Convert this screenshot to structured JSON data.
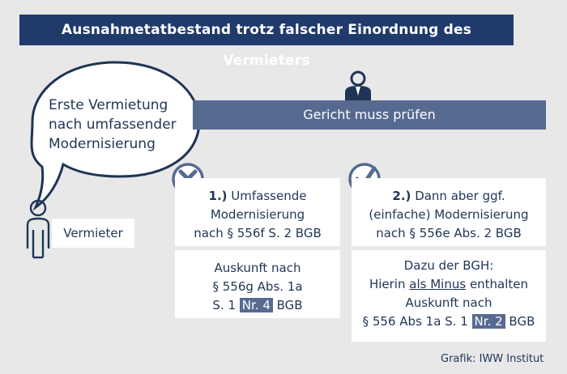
{
  "title": "Ausnahmetatbestand trotz falscher Einordnung des Vermieters",
  "bubble": {
    "text_lines": [
      "Erste Vermietung",
      "nach umfassender",
      "Modernisierung"
    ]
  },
  "court_bar": {
    "label": "Gericht muss prüfen"
  },
  "landlord": {
    "label": "Vermieter",
    "icon": "person-icon"
  },
  "judge": {
    "icon": "judge-icon"
  },
  "option1": {
    "status_icon": "x-mark-icon",
    "heading_num": "1.)",
    "heading_lines": [
      "Umfassende",
      "Modernisierung",
      "nach § 556f S. 2 BGB"
    ],
    "result_lines": [
      "Auskunft nach",
      "§ 556g Abs. 1a"
    ],
    "result_pre": "S. 1",
    "result_highlight": "Nr. 4",
    "result_post": "BGB"
  },
  "option2": {
    "status_icon": "check-mark-icon",
    "heading_num": "2.)",
    "heading_lines": [
      "Dann aber ggf.",
      "(einfache) Modernisierung",
      "nach § 556e Abs. 2 BGB"
    ],
    "result_line1": "Dazu der BGH:",
    "result_line2_pre": "Hierin",
    "result_line2_underlined": "als Minus",
    "result_line2_post": "enthalten",
    "result_line3": "Auskunft nach",
    "result_line4_pre": "§ 556 Abs 1a S. 1",
    "result_line4_highlight": "Nr. 2",
    "result_line4_post": "BGB"
  },
  "credit": "Grafik: IWW Institut",
  "colors": {
    "navy": "#1f3a6b",
    "slate": "#566a90",
    "background": "#e8e8e8",
    "white": "#ffffff"
  }
}
